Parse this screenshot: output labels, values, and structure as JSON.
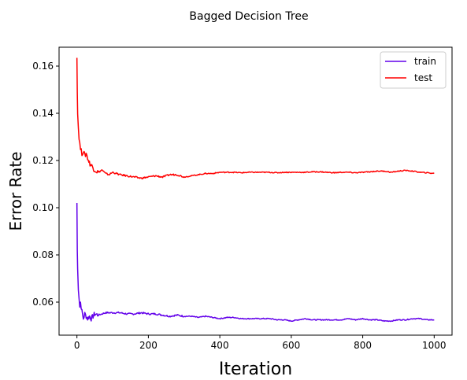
{
  "chart_data": {
    "type": "line",
    "title": "Bagged Decision Tree",
    "xlabel": "Iteration",
    "ylabel": "Error Rate",
    "xlim": [
      -50,
      1050
    ],
    "ylim": [
      0.046,
      0.168
    ],
    "xticks": [
      0,
      200,
      400,
      600,
      800,
      1000
    ],
    "xtick_labels": [
      "0",
      "200",
      "400",
      "600",
      "800",
      "1000"
    ],
    "yticks": [
      0.06,
      0.08,
      0.1,
      0.12,
      0.14,
      0.16
    ],
    "ytick_labels": [
      "0.06",
      "0.08",
      "0.10",
      "0.12",
      "0.14",
      "0.16"
    ],
    "grid": false,
    "legend_position": "top-right",
    "series": [
      {
        "name": "train",
        "color": "#6200ea",
        "x": [
          0,
          1,
          2,
          4,
          6,
          8,
          10,
          14,
          18,
          22,
          26,
          30,
          35,
          40,
          45,
          50,
          60,
          70,
          80,
          90,
          100,
          120,
          140,
          160,
          180,
          200,
          220,
          240,
          260,
          280,
          300,
          320,
          340,
          360,
          380,
          400,
          420,
          440,
          460,
          480,
          500,
          520,
          540,
          560,
          580,
          600,
          620,
          640,
          660,
          680,
          700,
          720,
          740,
          760,
          780,
          800,
          820,
          840,
          860,
          880,
          900,
          920,
          940,
          960,
          980,
          1000
        ],
        "y": [
          0.102,
          0.082,
          0.074,
          0.066,
          0.062,
          0.058,
          0.06,
          0.056,
          0.053,
          0.055,
          0.054,
          0.053,
          0.054,
          0.053,
          0.054,
          0.055,
          0.0545,
          0.055,
          0.0555,
          0.0555,
          0.0555,
          0.0555,
          0.055,
          0.055,
          0.0555,
          0.055,
          0.055,
          0.0545,
          0.054,
          0.0545,
          0.054,
          0.054,
          0.0535,
          0.054,
          0.0535,
          0.053,
          0.0535,
          0.0535,
          0.053,
          0.053,
          0.053,
          0.053,
          0.053,
          0.0525,
          0.0525,
          0.052,
          0.0525,
          0.053,
          0.0525,
          0.0525,
          0.0525,
          0.0525,
          0.0525,
          0.053,
          0.0525,
          0.053,
          0.0525,
          0.0525,
          0.052,
          0.052,
          0.0525,
          0.0525,
          0.053,
          0.053,
          0.0525,
          0.0525
        ]
      },
      {
        "name": "test",
        "color": "#ff0000",
        "x": [
          0,
          1,
          2,
          4,
          6,
          8,
          10,
          14,
          18,
          22,
          26,
          30,
          35,
          40,
          45,
          50,
          60,
          70,
          80,
          90,
          100,
          120,
          140,
          160,
          180,
          200,
          220,
          240,
          260,
          280,
          300,
          320,
          340,
          360,
          380,
          400,
          420,
          440,
          460,
          480,
          500,
          520,
          540,
          560,
          580,
          600,
          620,
          640,
          660,
          680,
          700,
          720,
          740,
          760,
          780,
          800,
          820,
          840,
          860,
          880,
          900,
          920,
          940,
          960,
          980,
          1000
        ],
        "y": [
          0.1635,
          0.15,
          0.14,
          0.134,
          0.13,
          0.127,
          0.125,
          0.123,
          0.124,
          0.122,
          0.123,
          0.121,
          0.119,
          0.118,
          0.117,
          0.116,
          0.115,
          0.116,
          0.1145,
          0.114,
          0.115,
          0.114,
          0.1135,
          0.113,
          0.1125,
          0.113,
          0.1135,
          0.113,
          0.114,
          0.114,
          0.113,
          0.1135,
          0.114,
          0.1145,
          0.1145,
          0.115,
          0.115,
          0.115,
          0.1148,
          0.115,
          0.115,
          0.115,
          0.115,
          0.1148,
          0.115,
          0.115,
          0.115,
          0.115,
          0.1152,
          0.1152,
          0.115,
          0.1148,
          0.115,
          0.115,
          0.1148,
          0.115,
          0.1152,
          0.1155,
          0.1155,
          0.115,
          0.1155,
          0.1158,
          0.1155,
          0.115,
          0.1148,
          0.1145
        ]
      }
    ]
  }
}
